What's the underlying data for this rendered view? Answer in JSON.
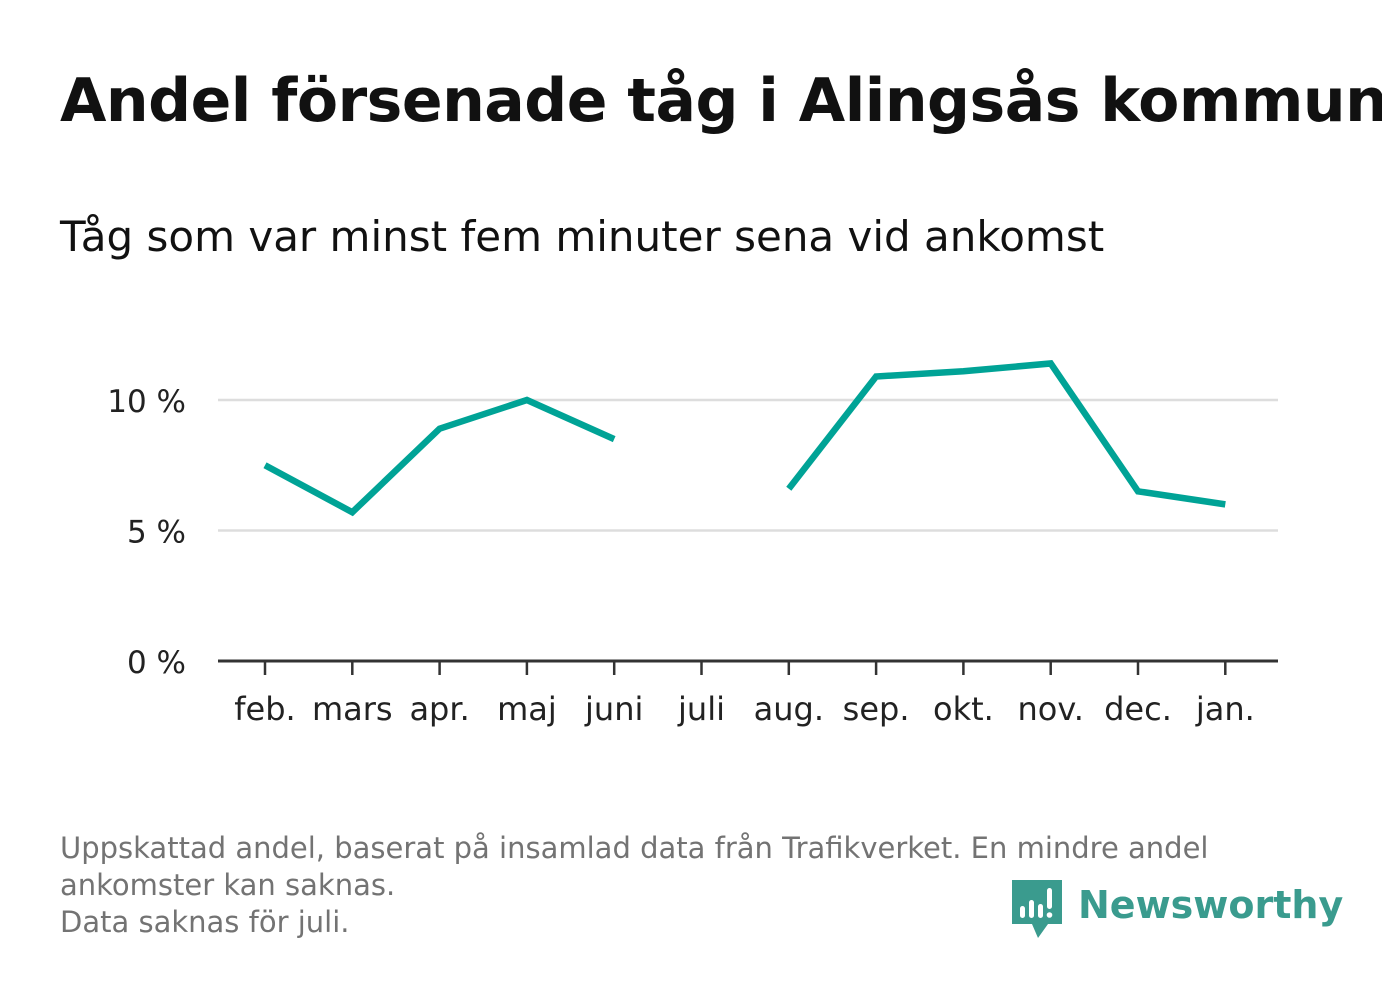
{
  "title": "Andel försenade tåg i Alingsås kommun",
  "subtitle": "Tåg som var minst fem minuter sena vid ankomst",
  "footnote": {
    "line1": "Uppskattad andel, baserat på insamlad data från Trafikverket. En mindre andel",
    "line2": "ankomster kan saknas.",
    "line3": "Data saknas för juli."
  },
  "brand": {
    "name": "Newsworthy",
    "icon": "bar-chart-speech-bubble-icon",
    "color": "#3a9b8e"
  },
  "colors": {
    "line": "#00a396",
    "grid": "#dddddd",
    "axis": "#333333"
  },
  "chart_data": {
    "type": "line",
    "categories": [
      "feb.",
      "mars",
      "apr.",
      "maj",
      "juni",
      "juli",
      "aug.",
      "sep.",
      "okt.",
      "nov.",
      "dec.",
      "jan."
    ],
    "series": [
      {
        "values": [
          7.5,
          5.7,
          8.9,
          10.0,
          8.5,
          null,
          6.6,
          10.9,
          11.1,
          11.4,
          6.5,
          6.0
        ]
      }
    ],
    "y_ticks": [
      {
        "value": 0,
        "label": "0 %"
      },
      {
        "value": 5,
        "label": "5 %"
      },
      {
        "value": 10,
        "label": "10 %"
      }
    ],
    "ylim": [
      0,
      12
    ],
    "grid": true,
    "legend": "none"
  }
}
